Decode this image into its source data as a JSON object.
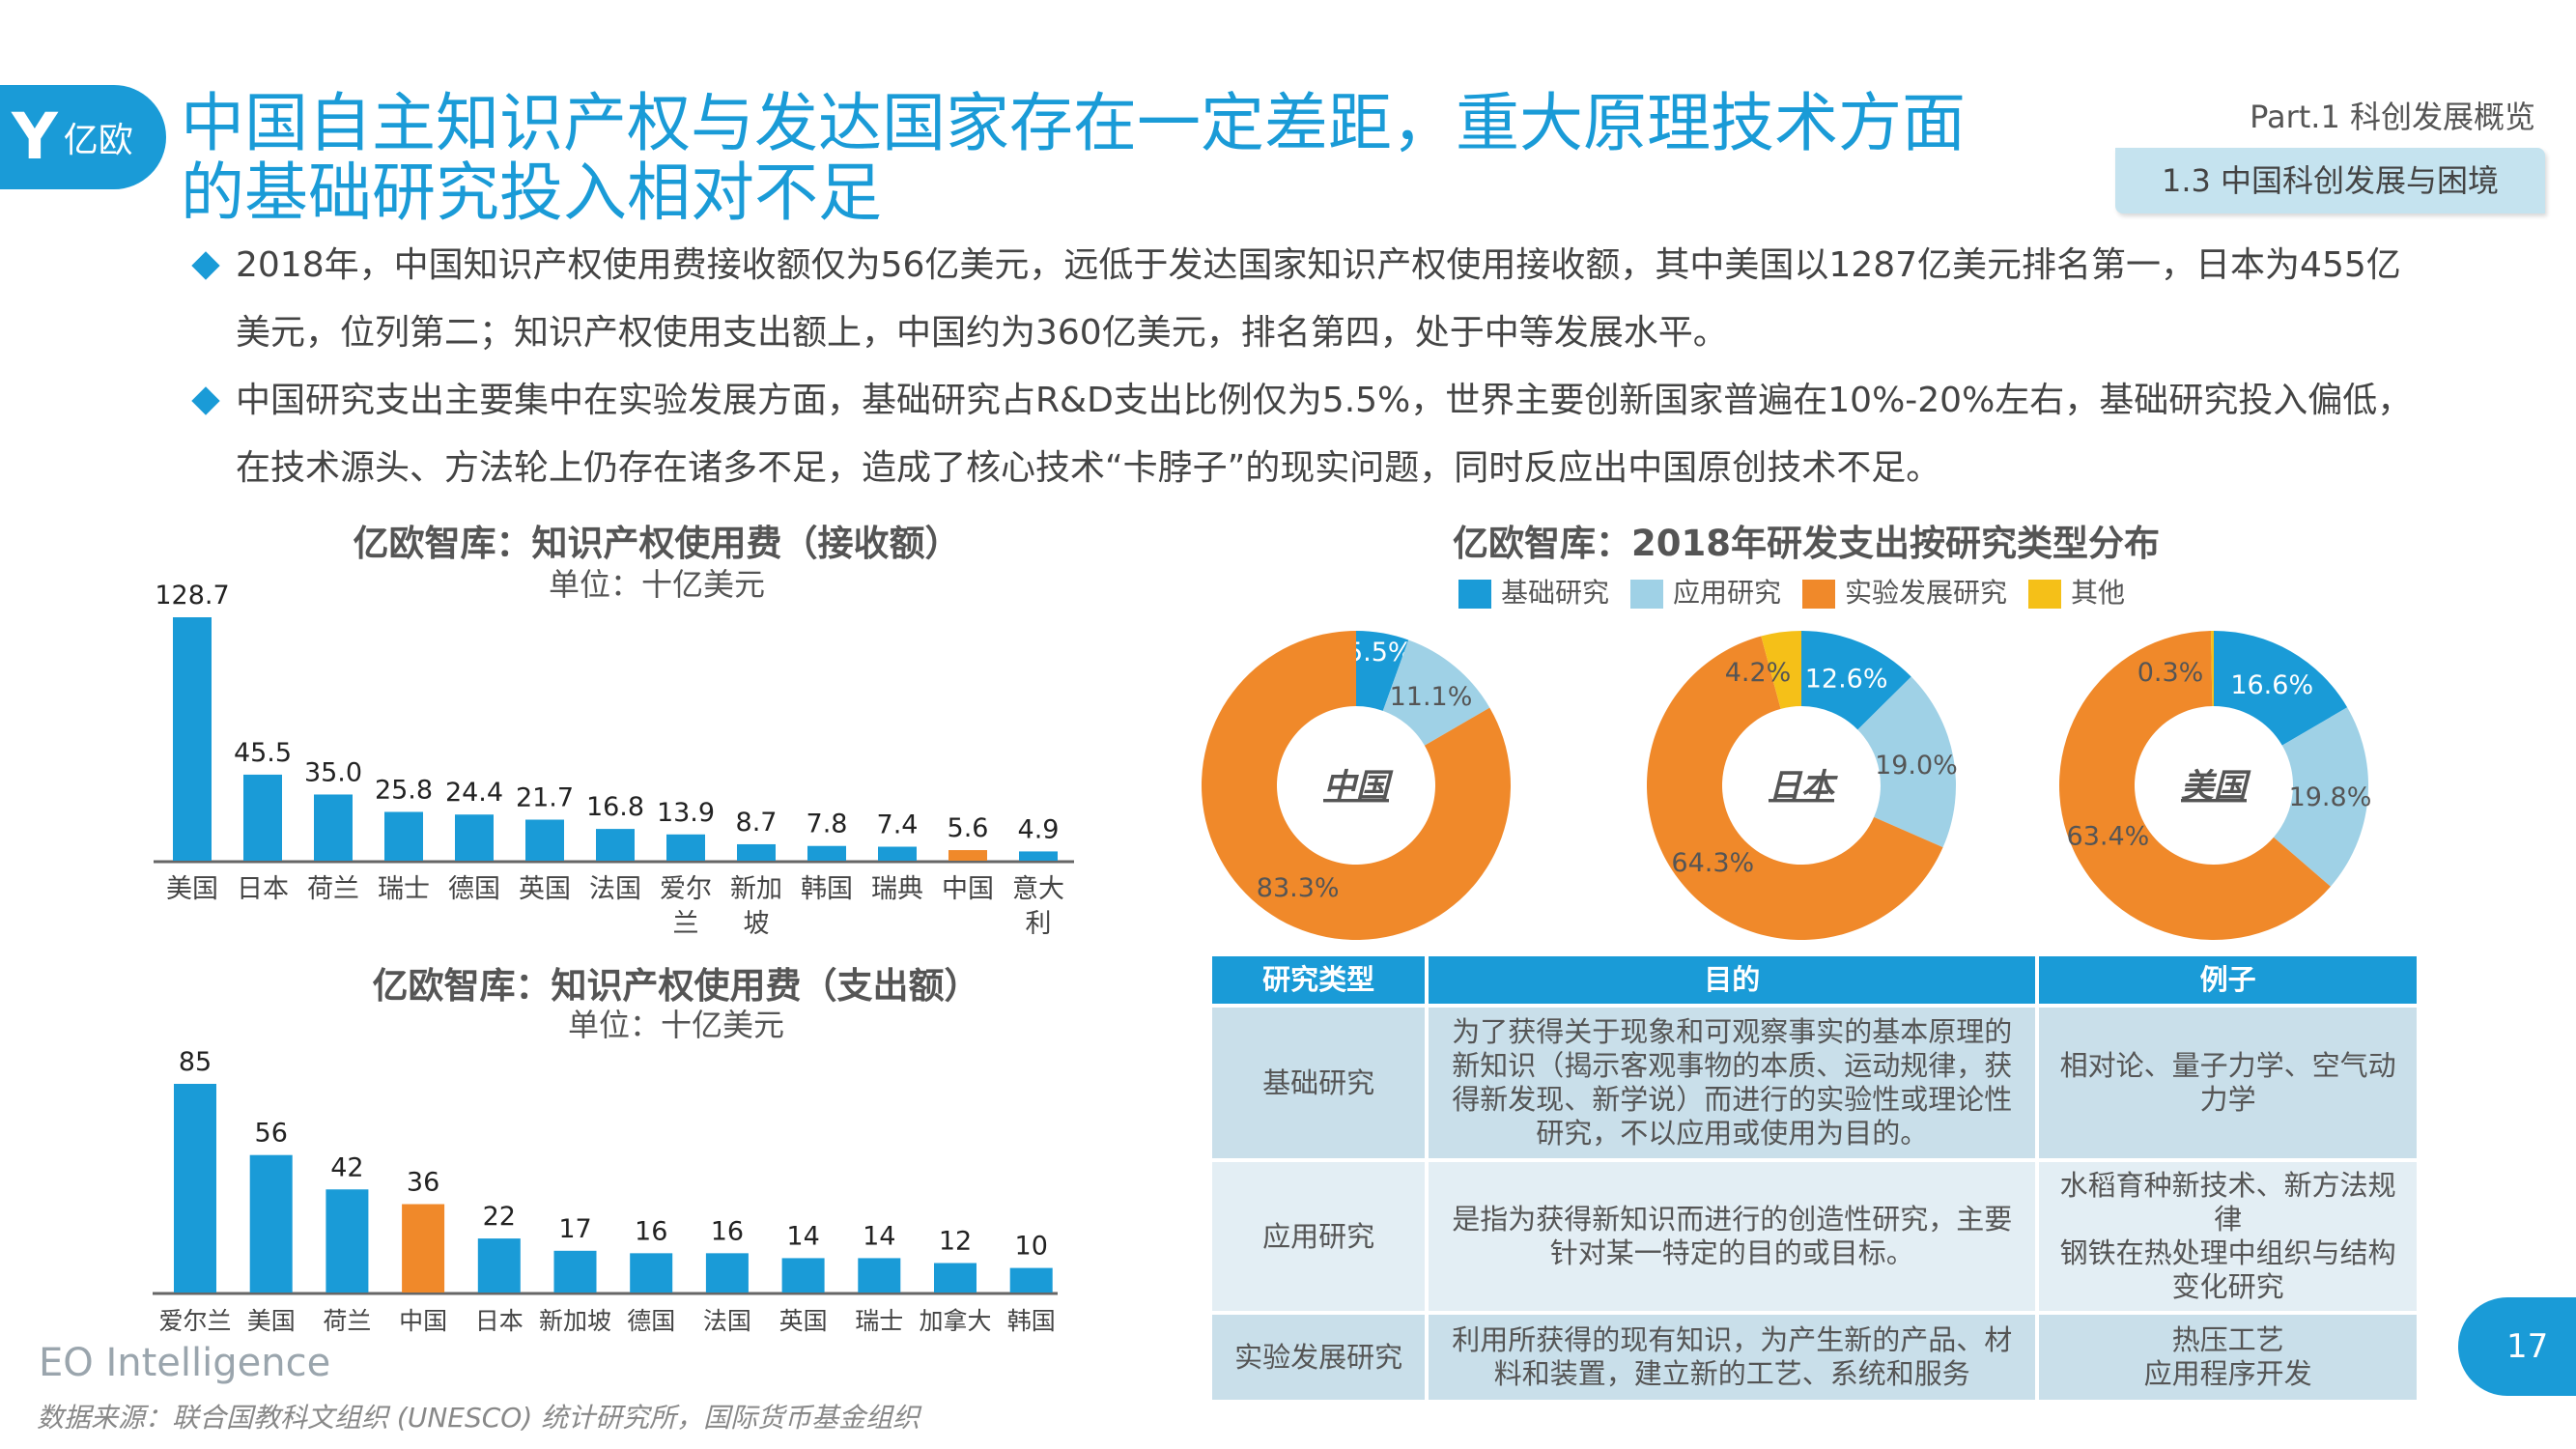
{
  "header": {
    "logo_text": "亿欧",
    "title": "中国自主知识产权与发达国家存在一定差距，重大原理技术方面的基础研究投入相对不足",
    "part": "Part.1 科创发展概览",
    "section": "1.3 中国科创发展与困境"
  },
  "bullets": [
    "2018年，中国知识产权使用费接收额仅为56亿美元，远低于发达国家知识产权使用接收额，其中美国以1287亿美元排名第一，日本为455亿美元，位列第二；知识产权使用支出额上，中国约为360亿美元，排名第四，处于中等发展水平。",
    "中国研究支出主要集中在实验发展方面，基础研究占R&D支出比例仅为5.5%，世界主要创新国家普遍在10%-20%左右，基础研究投入偏低，在技术源头、方法轮上仍存在诸多不足，造成了核心技术“卡脖子”的现实问题，同时反应出中国原创技术不足。"
  ],
  "colors": {
    "accent": "#1a9bd7",
    "highlight": "#f0892a",
    "light": "#9fd1e6",
    "other": "#f5c018"
  },
  "chart_data": [
    {
      "type": "bar",
      "title": "亿欧智库：知识产权使用费（接收额）",
      "subtitle": "单位：十亿美元",
      "categories": [
        "美国",
        "日本",
        "荷兰",
        "瑞士",
        "德国",
        "英国",
        "法国",
        "爱尔兰",
        "新加坡",
        "韩国",
        "瑞典",
        "中国",
        "意大利"
      ],
      "values": [
        128.7,
        45.5,
        35.0,
        25.8,
        24.4,
        21.7,
        16.8,
        13.9,
        8.7,
        7.8,
        7.4,
        5.6,
        4.9
      ],
      "labels": [
        "128.7",
        "45.5",
        "35.0",
        "25.8",
        "24.4",
        "21.7",
        "16.8",
        "13.9",
        "8.7",
        "7.8",
        "7.4",
        "5.6",
        "4.9"
      ],
      "highlight": "中国"
    },
    {
      "type": "bar",
      "title": "亿欧智库：知识产权使用费（支出额）",
      "subtitle": "单位：十亿美元",
      "categories": [
        "爱尔兰",
        "美国",
        "荷兰",
        "中国",
        "日本",
        "新加坡",
        "德国",
        "法国",
        "英国",
        "瑞士",
        "加拿大",
        "韩国"
      ],
      "values": [
        85,
        56,
        42,
        36,
        22,
        17,
        16,
        16,
        14,
        14,
        12,
        10
      ],
      "labels": [
        "85",
        "56",
        "42",
        "36",
        "22",
        "17",
        "16",
        "16",
        "14",
        "14",
        "12",
        "10"
      ],
      "highlight": "中国"
    },
    {
      "type": "pie",
      "title": "亿欧智库：2018年研发支出按研究类型分布",
      "legend": [
        "基础研究",
        "应用研究",
        "实验发展研究",
        "其他"
      ],
      "legend_position": "top",
      "donuts": [
        {
          "name": "中国",
          "values": [
            5.5,
            11.1,
            83.3,
            0
          ],
          "labels": [
            "5.5%",
            "11.1%",
            "83.3%",
            ""
          ]
        },
        {
          "name": "日本",
          "values": [
            12.6,
            19.0,
            64.3,
            4.2
          ],
          "labels": [
            "12.6%",
            "19.0%",
            "64.3%",
            "4.2%"
          ]
        },
        {
          "name": "美国",
          "values": [
            16.6,
            19.8,
            63.4,
            0.3
          ],
          "labels": [
            "16.6%",
            "19.8%",
            "63.4%",
            "0.3%"
          ]
        }
      ]
    }
  ],
  "table": {
    "headers": [
      "研究类型",
      "目的",
      "例子"
    ],
    "rows": [
      [
        "基础研究",
        "为了获得关于现象和可观察事实的基本原理的新知识（揭示客观事物的本质、运动规律，获得新发现、新学说）而进行的实验性或理论性研究，不以应用或使用为目的。",
        "相对论、量子力学、空气动力学"
      ],
      [
        "应用研究",
        "是指为获得新知识而进行的创造性研究，主要针对某一特定的目的或目标。",
        "水稻育种新技术、新方法规律\n钢铁在热处理中组织与结构变化研究"
      ],
      [
        "实验发展研究",
        "利用所获得的现有知识，为产生新的产品、材料和装置，建立新的工艺、系统和服务",
        "热压工艺\n应用程序开发"
      ]
    ]
  },
  "footer": {
    "brand": "EO Intelligence",
    "source": "数据来源：联合国教科文组织 (UNESCO) 统计研究所，国际货币基金组织",
    "page": "17"
  }
}
